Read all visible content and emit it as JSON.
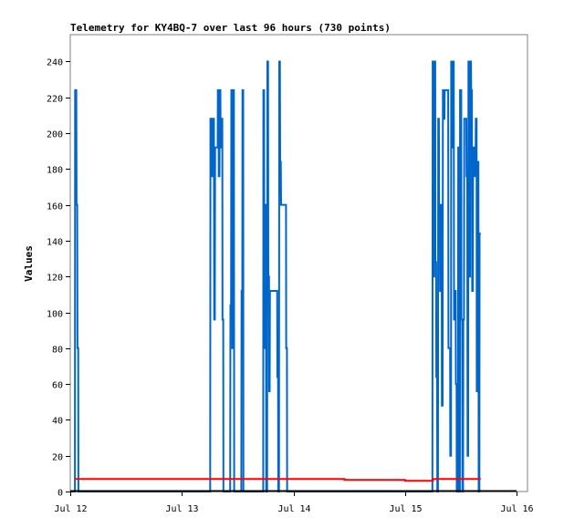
{
  "chart_data": {
    "type": "line",
    "title": "Telemetry for KY4BQ-7 over last 96 hours (730 points)",
    "xlabel": "",
    "ylabel": "Values",
    "xlim": [
      0,
      96
    ],
    "ylim": [
      0,
      255
    ],
    "x_ticks": [
      {
        "x": 0,
        "label": "Jul 12"
      },
      {
        "x": 24,
        "label": "Jul 13"
      },
      {
        "x": 48,
        "label": "Jul 14"
      },
      {
        "x": 72,
        "label": "Jul 15"
      },
      {
        "x": 96,
        "label": "Jul 16"
      }
    ],
    "y_ticks": [
      0,
      20,
      40,
      60,
      80,
      100,
      120,
      140,
      160,
      180,
      200,
      220,
      240
    ],
    "grid": false,
    "colors": {
      "series_blue": "#0066cc",
      "series_red": "#ff0000",
      "axis_line": "#000000",
      "frame": "#808080"
    },
    "series": [
      {
        "color": "#0066cc",
        "step": true,
        "points": [
          [
            0,
            0
          ],
          [
            1.0,
            0
          ],
          [
            1.05,
            224
          ],
          [
            1.3,
            224
          ],
          [
            1.35,
            160
          ],
          [
            1.5,
            160
          ],
          [
            1.55,
            80
          ],
          [
            1.7,
            80
          ],
          [
            1.75,
            0
          ],
          [
            30.1,
            0
          ],
          [
            30.15,
            208
          ],
          [
            30.4,
            208
          ],
          [
            30.45,
            176
          ],
          [
            30.7,
            176
          ],
          [
            30.75,
            208
          ],
          [
            30.9,
            208
          ],
          [
            30.95,
            96
          ],
          [
            31.1,
            96
          ],
          [
            31.15,
            192
          ],
          [
            31.7,
            192
          ],
          [
            31.75,
            224
          ],
          [
            31.9,
            224
          ],
          [
            31.95,
            176
          ],
          [
            32.1,
            176
          ],
          [
            32.15,
            224
          ],
          [
            32.3,
            224
          ],
          [
            32.35,
            192
          ],
          [
            32.5,
            192
          ],
          [
            32.55,
            208
          ],
          [
            32.7,
            208
          ],
          [
            32.75,
            96
          ],
          [
            32.9,
            96
          ],
          [
            32.95,
            0
          ],
          [
            34.4,
            0
          ],
          [
            34.45,
            104
          ],
          [
            34.6,
            104
          ],
          [
            34.65,
            224
          ],
          [
            34.8,
            224
          ],
          [
            34.85,
            80
          ],
          [
            35.0,
            80
          ],
          [
            35.05,
            224
          ],
          [
            35.2,
            224
          ],
          [
            35.25,
            0
          ],
          [
            36.8,
            0
          ],
          [
            36.85,
            112
          ],
          [
            37.0,
            112
          ],
          [
            37.05,
            224
          ],
          [
            37.2,
            224
          ],
          [
            37.25,
            0
          ],
          [
            41.5,
            0
          ],
          [
            41.55,
            224
          ],
          [
            41.7,
            224
          ],
          [
            41.75,
            80
          ],
          [
            41.9,
            80
          ],
          [
            41.95,
            160
          ],
          [
            42.1,
            160
          ],
          [
            42.15,
            0
          ],
          [
            42.35,
            0
          ],
          [
            42.4,
            240
          ],
          [
            42.55,
            240
          ],
          [
            42.6,
            120
          ],
          [
            42.75,
            120
          ],
          [
            42.8,
            56
          ],
          [
            42.9,
            56
          ],
          [
            42.95,
            112
          ],
          [
            44.5,
            112
          ],
          [
            44.55,
            64
          ],
          [
            44.7,
            64
          ],
          [
            44.75,
            0
          ],
          [
            44.9,
            0
          ],
          [
            44.95,
            240
          ],
          [
            45.1,
            240
          ],
          [
            45.15,
            184
          ],
          [
            45.3,
            184
          ],
          [
            45.35,
            160
          ],
          [
            46.4,
            160
          ],
          [
            46.45,
            80
          ],
          [
            46.6,
            80
          ],
          [
            46.65,
            0
          ],
          [
            77.9,
            0
          ],
          [
            77.95,
            240
          ],
          [
            78.1,
            240
          ],
          [
            78.15,
            120
          ],
          [
            78.3,
            120
          ],
          [
            78.35,
            240
          ],
          [
            78.5,
            240
          ],
          [
            78.55,
            128
          ],
          [
            78.7,
            128
          ],
          [
            78.75,
            64
          ],
          [
            78.9,
            64
          ],
          [
            78.95,
            0
          ],
          [
            79.1,
            0
          ],
          [
            79.15,
            208
          ],
          [
            79.3,
            208
          ],
          [
            79.35,
            160
          ],
          [
            79.5,
            160
          ],
          [
            79.55,
            112
          ],
          [
            79.7,
            112
          ],
          [
            79.75,
            160
          ],
          [
            79.9,
            160
          ],
          [
            79.95,
            48
          ],
          [
            80.1,
            48
          ],
          [
            80.15,
            224
          ],
          [
            80.3,
            224
          ],
          [
            80.35,
            208
          ],
          [
            80.5,
            208
          ],
          [
            80.55,
            224
          ],
          [
            81.3,
            224
          ],
          [
            81.35,
            80
          ],
          [
            81.7,
            80
          ],
          [
            81.75,
            20
          ],
          [
            81.9,
            20
          ],
          [
            81.95,
            240
          ],
          [
            82.1,
            240
          ],
          [
            82.15,
            192
          ],
          [
            82.3,
            192
          ],
          [
            82.35,
            240
          ],
          [
            82.5,
            240
          ],
          [
            82.55,
            96
          ],
          [
            82.7,
            96
          ],
          [
            82.75,
            112
          ],
          [
            82.9,
            112
          ],
          [
            82.95,
            60
          ],
          [
            83.1,
            60
          ],
          [
            83.15,
            0
          ],
          [
            83.4,
            0
          ],
          [
            83.45,
            192
          ],
          [
            83.6,
            192
          ],
          [
            83.65,
            0
          ],
          [
            83.8,
            0
          ],
          [
            83.85,
            224
          ],
          [
            84.1,
            224
          ],
          [
            84.15,
            96
          ],
          [
            84.3,
            96
          ],
          [
            84.35,
            0
          ],
          [
            84.5,
            0
          ],
          [
            84.55,
            96
          ],
          [
            84.7,
            96
          ],
          [
            84.75,
            208
          ],
          [
            85.2,
            208
          ],
          [
            85.25,
            176
          ],
          [
            85.4,
            176
          ],
          [
            85.45,
            20
          ],
          [
            85.6,
            20
          ],
          [
            85.65,
            240
          ],
          [
            85.8,
            240
          ],
          [
            85.85,
            120
          ],
          [
            86.0,
            120
          ],
          [
            86.05,
            240
          ],
          [
            86.2,
            240
          ],
          [
            86.25,
            224
          ],
          [
            86.4,
            224
          ],
          [
            86.45,
            112
          ],
          [
            86.6,
            112
          ],
          [
            86.65,
            192
          ],
          [
            86.8,
            192
          ],
          [
            86.85,
            176
          ],
          [
            87.0,
            176
          ],
          [
            87.05,
            192
          ],
          [
            87.2,
            192
          ],
          [
            87.25,
            208
          ],
          [
            87.4,
            208
          ],
          [
            87.45,
            56
          ],
          [
            87.6,
            56
          ],
          [
            87.65,
            184
          ],
          [
            87.8,
            184
          ],
          [
            87.85,
            0
          ],
          [
            88.0,
            0
          ],
          [
            88.05,
            144
          ],
          [
            88.3,
            144
          ]
        ]
      },
      {
        "color": "#ff0000",
        "step": true,
        "points": [
          [
            1.0,
            7
          ],
          [
            59.0,
            7
          ],
          [
            59.0,
            6.5
          ],
          [
            72.0,
            6.5
          ],
          [
            72.0,
            6
          ],
          [
            78.0,
            6
          ],
          [
            78.0,
            7
          ],
          [
            88.3,
            7
          ]
        ]
      }
    ]
  }
}
